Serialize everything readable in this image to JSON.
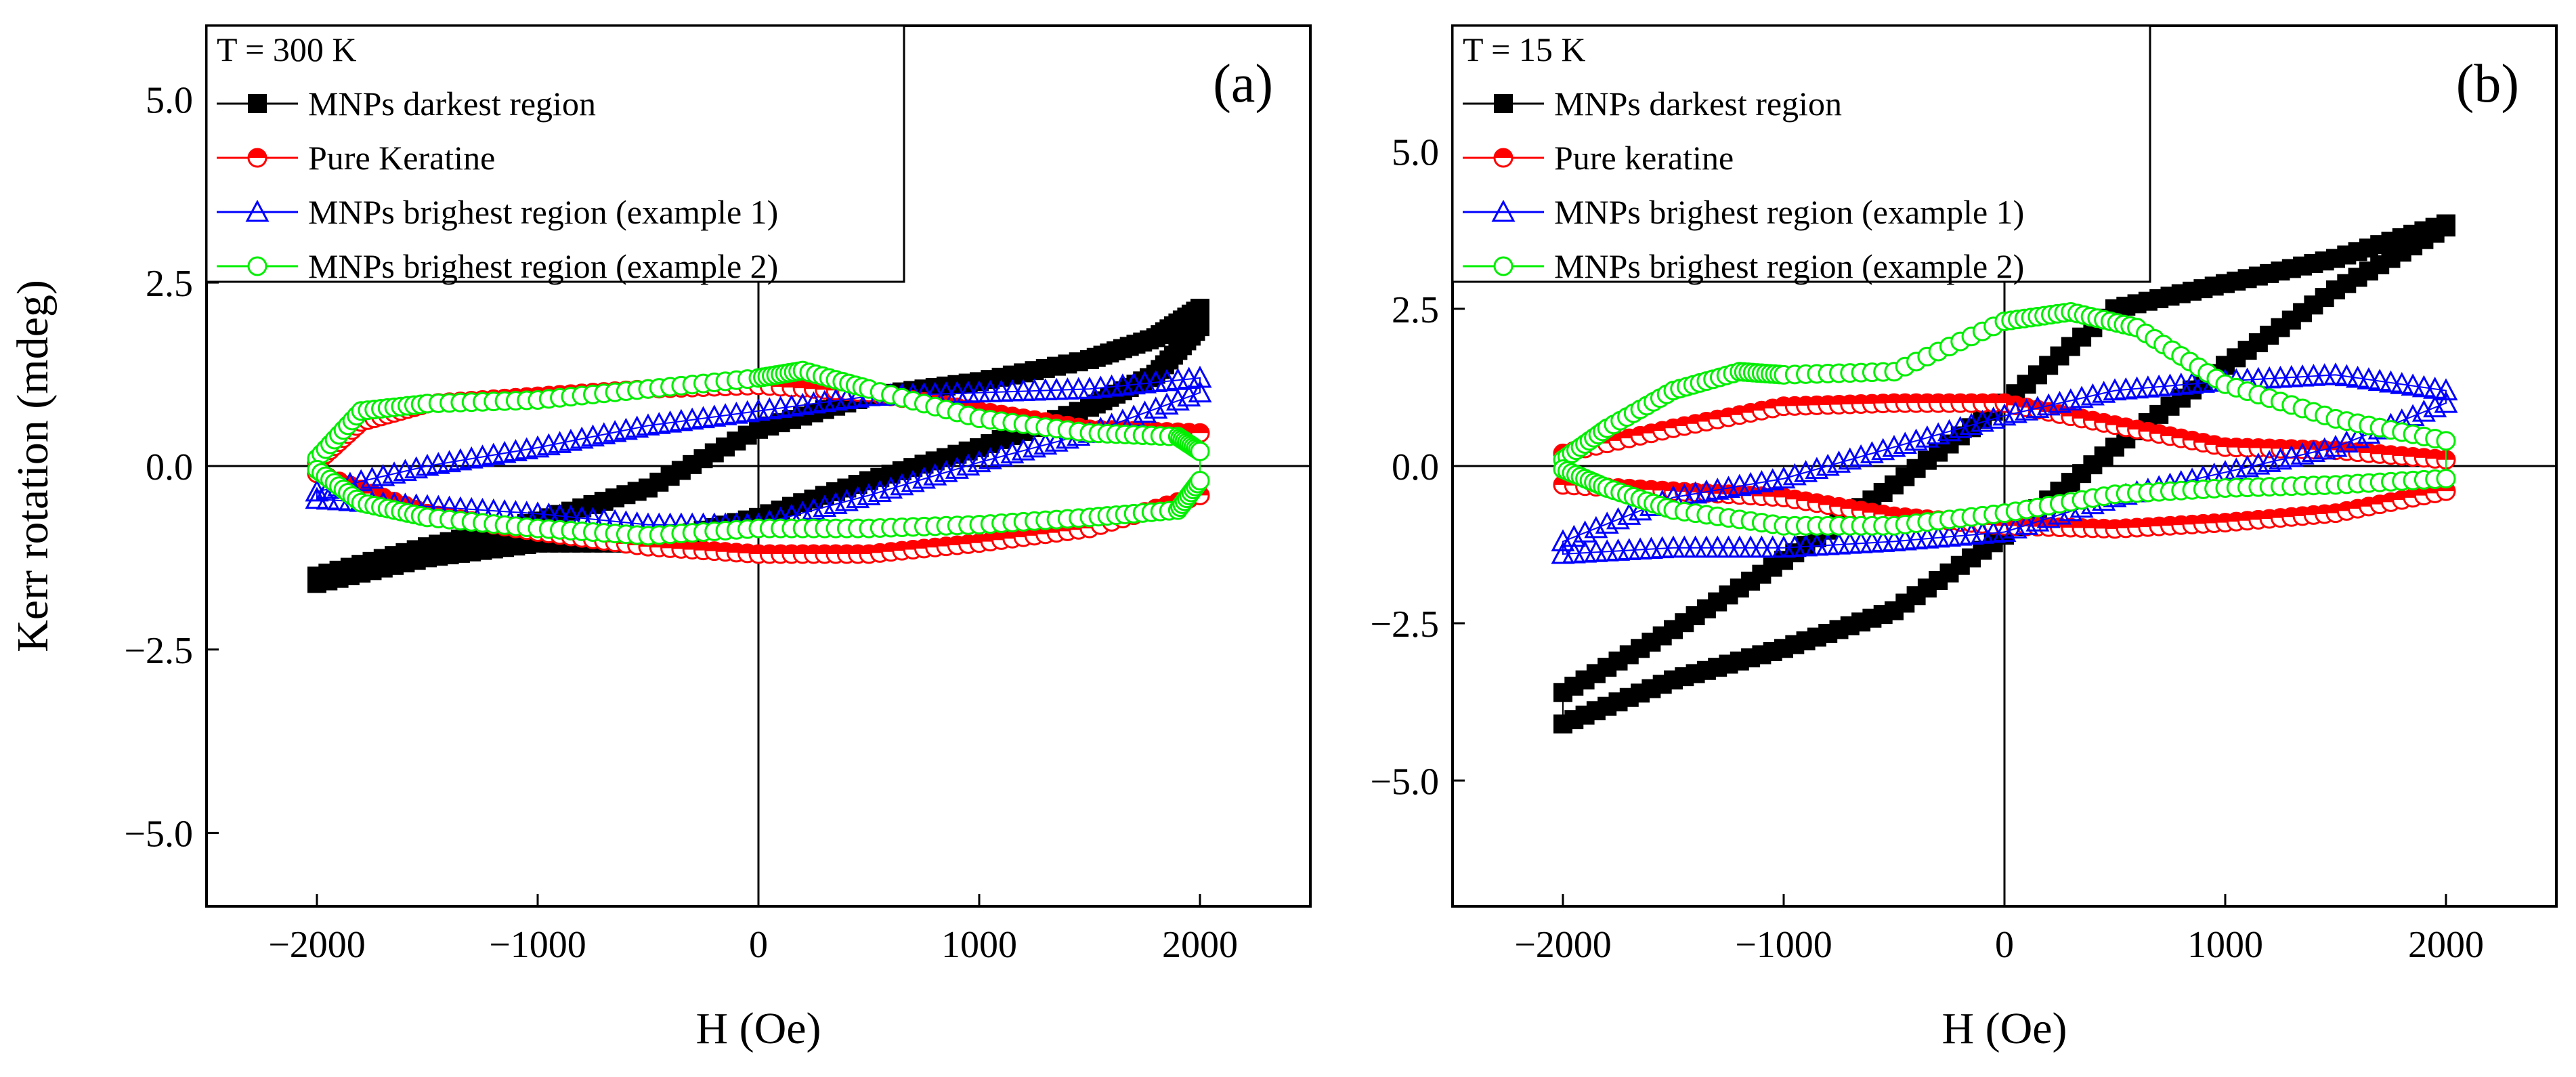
{
  "chart_data": [
    {
      "type": "line",
      "panel_label": "(a)",
      "temperature_label": "T = 300 K",
      "xlabel": "H (Oe)",
      "ylabel": "Kerr rotation (mdeg)",
      "xlim": [
        -2500,
        2500
      ],
      "ylim": [
        -6,
        6
      ],
      "xticks": [
        -2000,
        -1000,
        0,
        1000,
        2000
      ],
      "xtick_labels": [
        "−2000",
        "−1000",
        "0",
        "1000",
        "2000"
      ],
      "yticks": [
        -5,
        -2.5,
        0,
        2.5,
        5
      ],
      "ytick_labels": [
        "−5.0",
        "−2.5",
        "0.0",
        "2.5",
        "5.0"
      ],
      "legend_position": "top-left",
      "series": [
        {
          "name": "MNPs darkest region",
          "color": "#000000",
          "marker": "filled-square",
          "upper": [
            [
              -2000,
              -1.5
            ],
            [
              -1500,
              -1.1
            ],
            [
              -1000,
              -0.75
            ],
            [
              -500,
              -0.3
            ],
            [
              0,
              0.5
            ],
            [
              500,
              0.95
            ],
            [
              1000,
              1.15
            ],
            [
              1500,
              1.45
            ],
            [
              1800,
              1.75
            ],
            [
              2000,
              2.15
            ]
          ],
          "lower": [
            [
              -2000,
              -1.6
            ],
            [
              -1500,
              -1.25
            ],
            [
              -1000,
              -1.05
            ],
            [
              -500,
              -1.05
            ],
            [
              0,
              -0.7
            ],
            [
              500,
              -0.2
            ],
            [
              1000,
              0.25
            ],
            [
              1500,
              0.8
            ],
            [
              1800,
              1.25
            ],
            [
              2000,
              1.9
            ]
          ]
        },
        {
          "name": "Pure Keratine",
          "color": "#ff0000",
          "marker": "half-filled-circle",
          "upper": [
            [
              -2000,
              0.05
            ],
            [
              -1800,
              0.6
            ],
            [
              -1500,
              0.85
            ],
            [
              -1000,
              0.95
            ],
            [
              -500,
              1.05
            ],
            [
              0,
              1.1
            ],
            [
              500,
              1.0
            ],
            [
              1000,
              0.75
            ],
            [
              1500,
              0.5
            ],
            [
              2000,
              0.45
            ]
          ],
          "lower": [
            [
              -2000,
              -0.1
            ],
            [
              -1500,
              -0.65
            ],
            [
              -1000,
              -0.9
            ],
            [
              -500,
              -1.1
            ],
            [
              0,
              -1.2
            ],
            [
              500,
              -1.2
            ],
            [
              1000,
              -1.05
            ],
            [
              1500,
              -0.85
            ],
            [
              2000,
              -0.4
            ]
          ]
        },
        {
          "name": "MNPs brighest region (example 1)",
          "color": "#0000ff",
          "marker": "open-triangle",
          "upper": [
            [
              -2000,
              -0.35
            ],
            [
              -1500,
              0.0
            ],
            [
              -1000,
              0.25
            ],
            [
              -500,
              0.55
            ],
            [
              0,
              0.75
            ],
            [
              500,
              0.95
            ],
            [
              1000,
              1.0
            ],
            [
              1500,
              1.05
            ],
            [
              2000,
              1.2
            ]
          ],
          "lower": [
            [
              -2000,
              -0.45
            ],
            [
              -1500,
              -0.55
            ],
            [
              -1000,
              -0.65
            ],
            [
              -500,
              -0.8
            ],
            [
              0,
              -0.8
            ],
            [
              500,
              -0.4
            ],
            [
              1000,
              0.05
            ],
            [
              1500,
              0.45
            ],
            [
              2000,
              1.0
            ]
          ]
        },
        {
          "name": "MNPs brighest region (example 2)",
          "color": "#00ee00",
          "marker": "open-circle",
          "upper": [
            [
              -2000,
              0.1
            ],
            [
              -1800,
              0.75
            ],
            [
              -1500,
              0.85
            ],
            [
              -1000,
              0.9
            ],
            [
              -500,
              1.05
            ],
            [
              0,
              1.2
            ],
            [
              200,
              1.3
            ],
            [
              500,
              1.05
            ],
            [
              1000,
              0.65
            ],
            [
              1500,
              0.45
            ],
            [
              1900,
              0.4
            ],
            [
              2000,
              0.2
            ]
          ],
          "lower": [
            [
              -2000,
              -0.05
            ],
            [
              -1800,
              -0.5
            ],
            [
              -1500,
              -0.7
            ],
            [
              -1000,
              -0.85
            ],
            [
              -500,
              -0.95
            ],
            [
              0,
              -0.85
            ],
            [
              500,
              -0.85
            ],
            [
              1000,
              -0.8
            ],
            [
              1500,
              -0.7
            ],
            [
              1900,
              -0.6
            ],
            [
              2000,
              -0.2
            ]
          ]
        }
      ]
    },
    {
      "type": "line",
      "panel_label": "(b)",
      "temperature_label": "T = 15 K",
      "xlabel": "H (Oe)",
      "ylabel": "",
      "xlim": [
        -2500,
        2500
      ],
      "ylim": [
        -7,
        7
      ],
      "xticks": [
        -2000,
        -1000,
        0,
        1000,
        2000
      ],
      "xtick_labels": [
        "−2000",
        "−1000",
        "0",
        "1000",
        "2000"
      ],
      "yticks": [
        -5,
        -2.5,
        0,
        2.5,
        5
      ],
      "ytick_labels": [
        "−5.0",
        "−2.5",
        "0.0",
        "2.5",
        "5.0"
      ],
      "legend_position": "top-left",
      "series": [
        {
          "name": "MNPs darkest region",
          "color": "#000000",
          "marker": "filled-square",
          "upper": [
            [
              -2000,
              -3.6
            ],
            [
              -1500,
              -2.6
            ],
            [
              -1000,
              -1.5
            ],
            [
              -500,
              -0.3
            ],
            [
              0,
              1.0
            ],
            [
              500,
              2.5
            ],
            [
              1000,
              2.9
            ],
            [
              1500,
              3.3
            ],
            [
              2000,
              3.85
            ]
          ],
          "lower": [
            [
              -2000,
              -4.1
            ],
            [
              -1500,
              -3.4
            ],
            [
              -1000,
              -2.9
            ],
            [
              -500,
              -2.3
            ],
            [
              0,
              -1.1
            ],
            [
              500,
              0.3
            ],
            [
              1000,
              1.6
            ],
            [
              1500,
              2.8
            ],
            [
              2000,
              3.8
            ]
          ]
        },
        {
          "name": "Pure keratine",
          "color": "#ff0000",
          "marker": "half-filled-circle",
          "upper": [
            [
              -2000,
              0.2
            ],
            [
              -1500,
              0.6
            ],
            [
              -1000,
              0.95
            ],
            [
              -500,
              1.0
            ],
            [
              0,
              1.0
            ],
            [
              500,
              0.65
            ],
            [
              1000,
              0.3
            ],
            [
              1500,
              0.25
            ],
            [
              2000,
              0.1
            ]
          ],
          "lower": [
            [
              -2000,
              -0.3
            ],
            [
              -1500,
              -0.4
            ],
            [
              -1000,
              -0.5
            ],
            [
              -500,
              -0.8
            ],
            [
              0,
              -0.95
            ],
            [
              500,
              -1.0
            ],
            [
              1000,
              -0.9
            ],
            [
              1500,
              -0.75
            ],
            [
              2000,
              -0.4
            ]
          ]
        },
        {
          "name": "MNPs brighest region (example 1)",
          "color": "#0000ff",
          "marker": "open-triangle",
          "upper": [
            [
              -2000,
              -1.2
            ],
            [
              -1500,
              -0.5
            ],
            [
              -1000,
              -0.2
            ],
            [
              -500,
              0.3
            ],
            [
              0,
              0.8
            ],
            [
              500,
              1.2
            ],
            [
              1000,
              1.35
            ],
            [
              1500,
              1.45
            ],
            [
              2000,
              1.2
            ]
          ],
          "lower": [
            [
              -2000,
              -1.4
            ],
            [
              -1500,
              -1.3
            ],
            [
              -1000,
              -1.3
            ],
            [
              -500,
              -1.2
            ],
            [
              0,
              -1.05
            ],
            [
              500,
              -0.5
            ],
            [
              1000,
              -0.1
            ],
            [
              1500,
              0.3
            ],
            [
              2000,
              1.0
            ]
          ]
        },
        {
          "name": "MNPs brighest region (example 2)",
          "color": "#00ee00",
          "marker": "open-circle",
          "upper": [
            [
              -2000,
              0.1
            ],
            [
              -1800,
              0.6
            ],
            [
              -1500,
              1.2
            ],
            [
              -1200,
              1.5
            ],
            [
              -1000,
              1.45
            ],
            [
              -500,
              1.5
            ],
            [
              0,
              2.3
            ],
            [
              300,
              2.45
            ],
            [
              600,
              2.2
            ],
            [
              1000,
              1.3
            ],
            [
              1500,
              0.75
            ],
            [
              2000,
              0.4
            ]
          ],
          "lower": [
            [
              -2000,
              -0.05
            ],
            [
              -1800,
              -0.35
            ],
            [
              -1500,
              -0.7
            ],
            [
              -1000,
              -0.95
            ],
            [
              -500,
              -0.95
            ],
            [
              0,
              -0.75
            ],
            [
              500,
              -0.45
            ],
            [
              1000,
              -0.35
            ],
            [
              1500,
              -0.3
            ],
            [
              2000,
              -0.2
            ]
          ]
        }
      ]
    }
  ]
}
